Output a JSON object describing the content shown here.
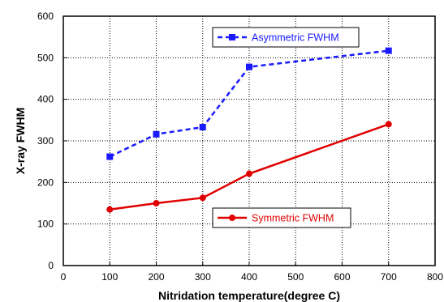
{
  "chart_data": {
    "type": "line",
    "title": "",
    "xlabel": "Nitridation temperature(degree C)",
    "ylabel": "X-ray FWHM",
    "xlim": [
      0,
      800
    ],
    "ylim": [
      0,
      600
    ],
    "x_ticks": [
      0,
      100,
      200,
      300,
      400,
      500,
      600,
      700,
      800
    ],
    "y_ticks": [
      0,
      100,
      200,
      300,
      400,
      500,
      600
    ],
    "grid": true,
    "grid_style": "dotted",
    "series": [
      {
        "name": "Asymmetric FWHM",
        "x": [
          100,
          200,
          300,
          400,
          700
        ],
        "values": [
          262,
          316,
          333,
          478,
          517
        ],
        "color": "#1a1aff",
        "line_style": "dashed",
        "marker": "square",
        "legend_placement": "top-center"
      },
      {
        "name": "Symmetric FWHM",
        "x": [
          100,
          200,
          300,
          400,
          700
        ],
        "values": [
          135,
          150,
          163,
          221,
          340
        ],
        "color": "#e00000",
        "line_style": "solid",
        "marker": "circle",
        "legend_placement": "bottom-right"
      }
    ]
  }
}
